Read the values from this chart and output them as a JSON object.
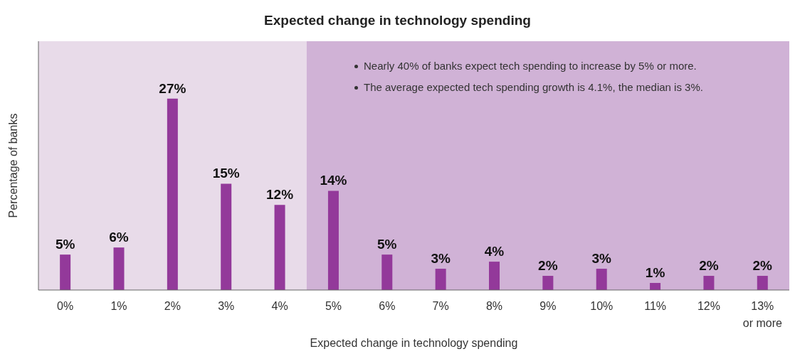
{
  "chart_data": {
    "type": "bar",
    "title": "Expected change in technology spending",
    "xlabel": "Expected change in technology spending",
    "ylabel": "Percentage of banks",
    "categories": [
      "0%",
      "1%",
      "2%",
      "3%",
      "4%",
      "5%",
      "6%",
      "7%",
      "8%",
      "9%",
      "10%",
      "11%",
      "12%",
      "13%\nor more"
    ],
    "values": [
      5,
      6,
      27,
      15,
      12,
      14,
      5,
      3,
      4,
      2,
      3,
      1,
      2,
      2
    ],
    "value_labels": [
      "5%",
      "6%",
      "27%",
      "15%",
      "12%",
      "14%",
      "5%",
      "3%",
      "4%",
      "2%",
      "3%",
      "1%",
      "2%",
      "2%"
    ],
    "color": "#93399a",
    "bands": [
      {
        "axis": "x",
        "from": "0%",
        "to": "4%",
        "color": "#e8dbe9"
      },
      {
        "axis": "x",
        "from": "5%",
        "to": "13%\nor more",
        "color": "#d0b2d6"
      }
    ],
    "annotations": [
      "Nearly 40% of banks expect tech spending to increase by 5% or more.",
      "The average expected tech spending growth is 4.1%, the median is 3%."
    ]
  }
}
